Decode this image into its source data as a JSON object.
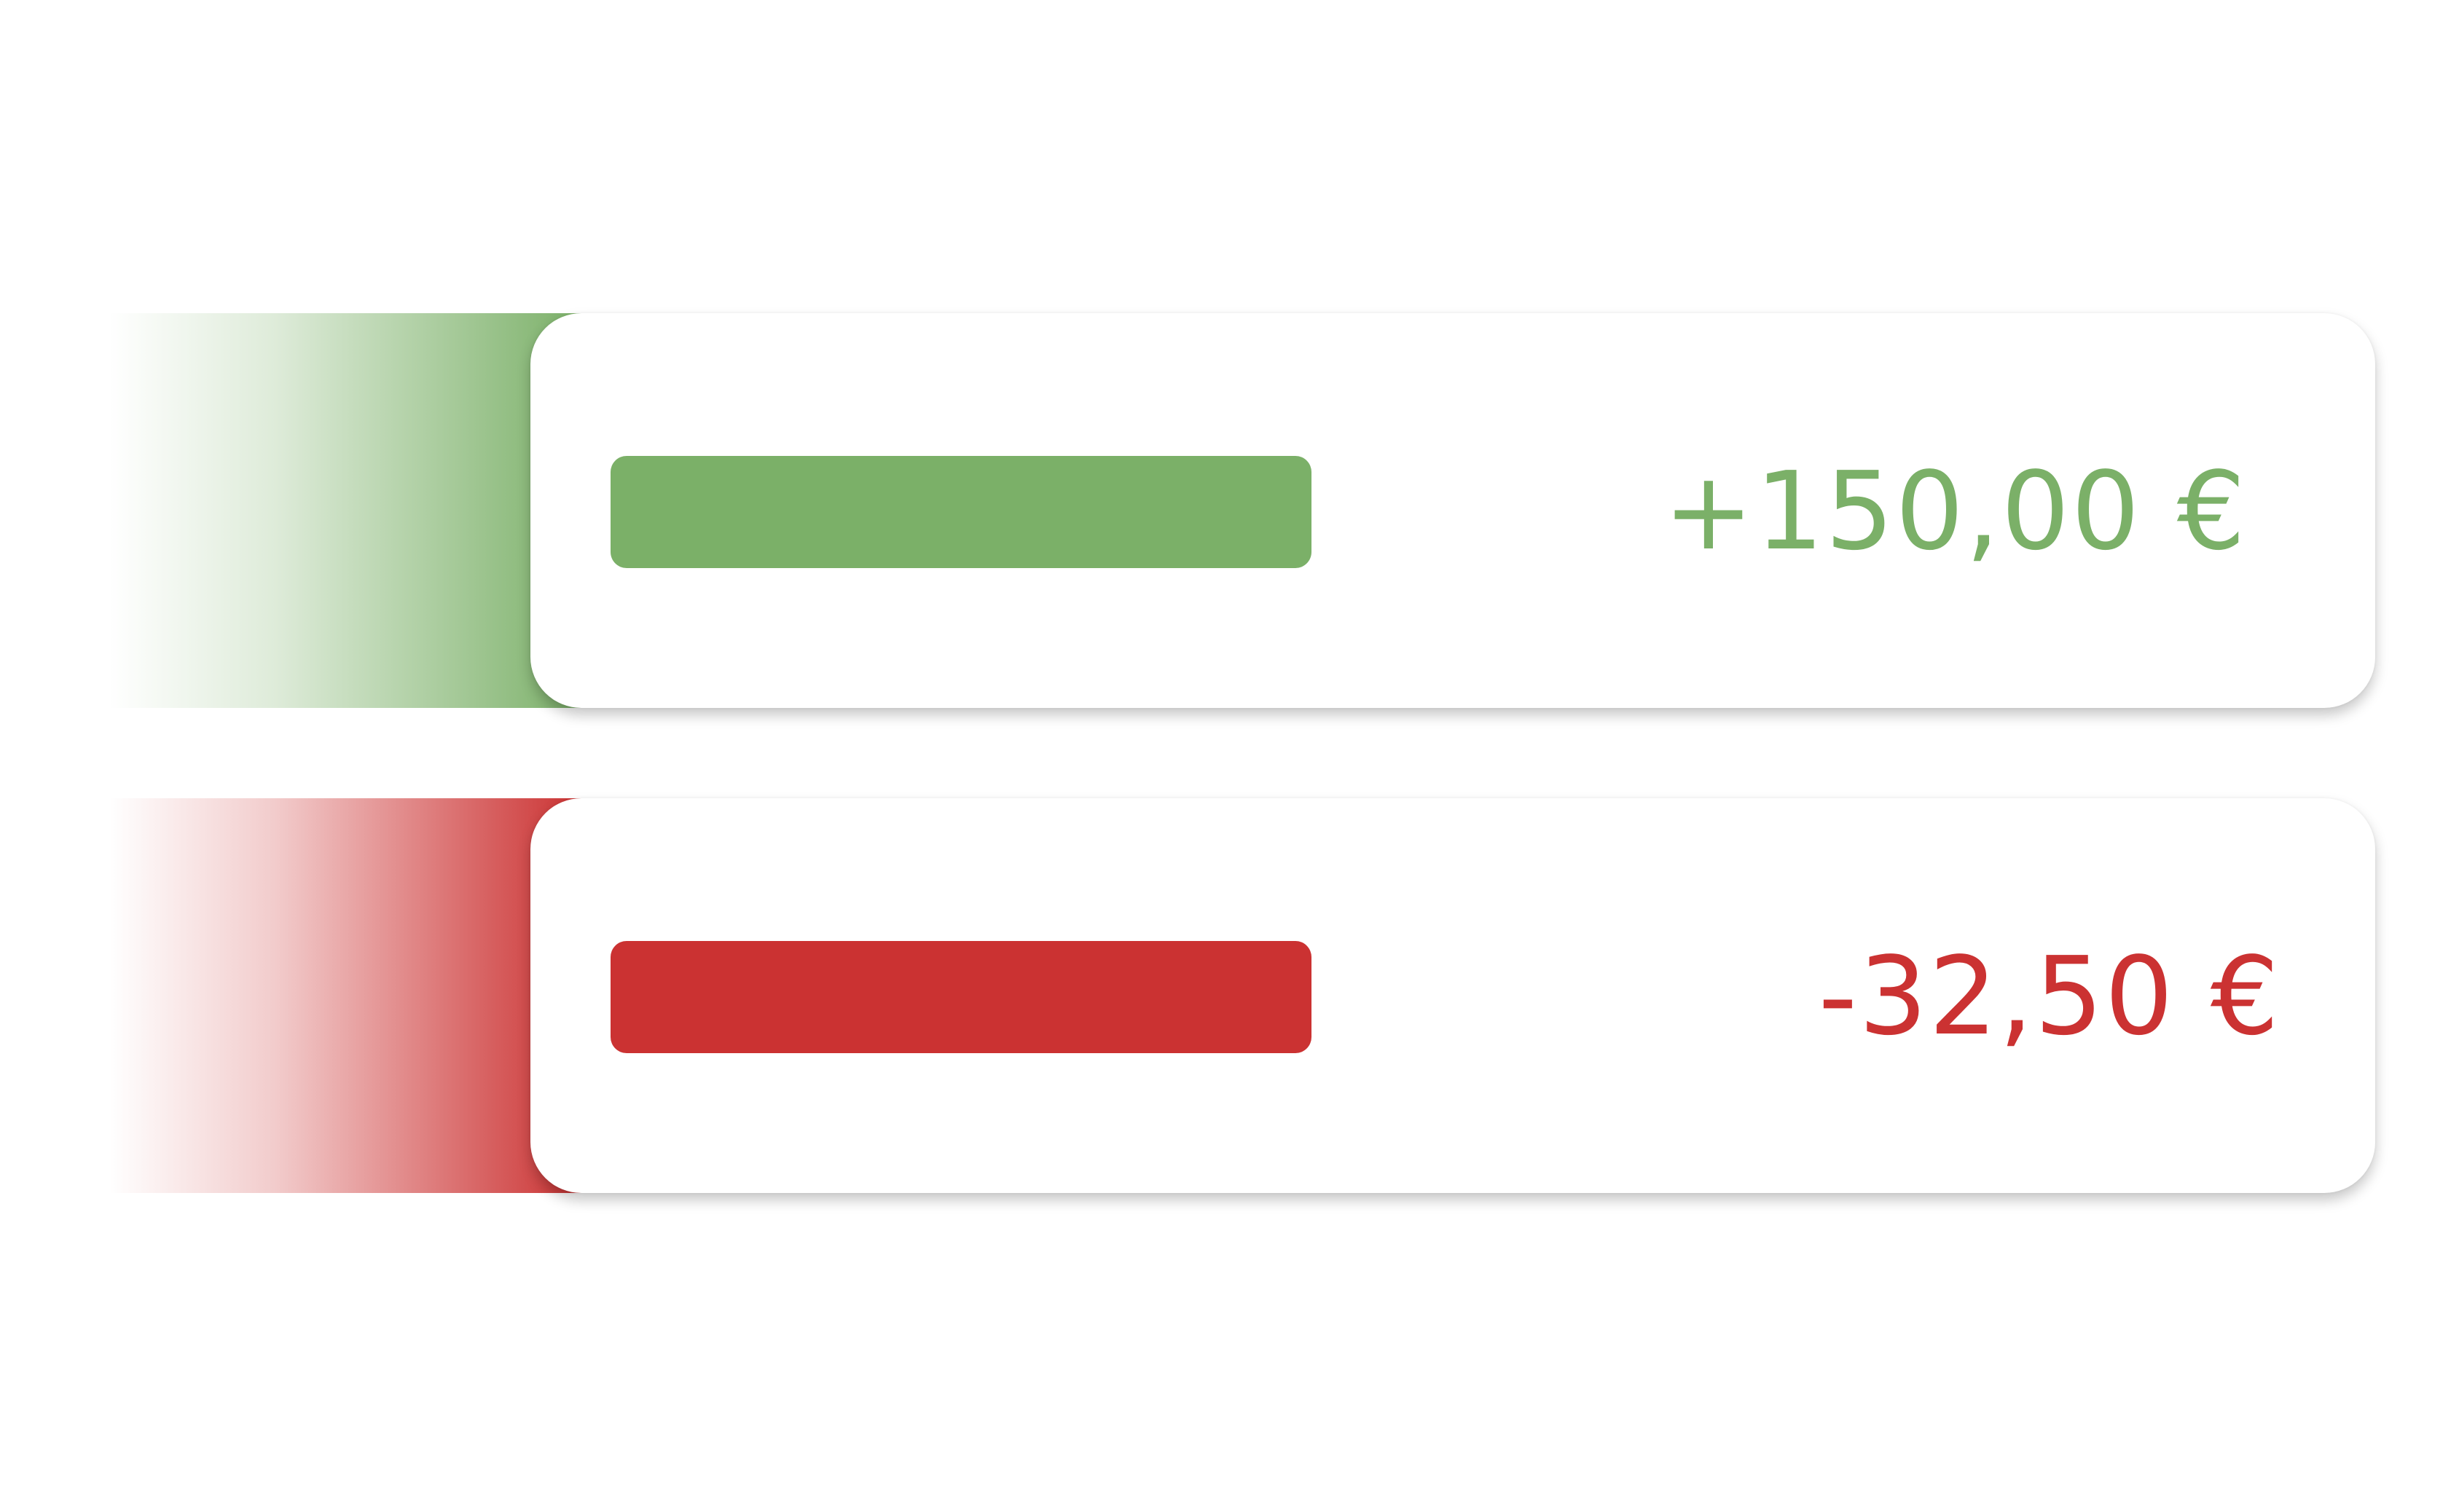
{
  "transactions": [
    {
      "type": "income",
      "amount": "+150,00 €",
      "color": "#7bb068"
    },
    {
      "type": "expense",
      "amount": "-32,50 €",
      "color": "#cb3232"
    }
  ]
}
